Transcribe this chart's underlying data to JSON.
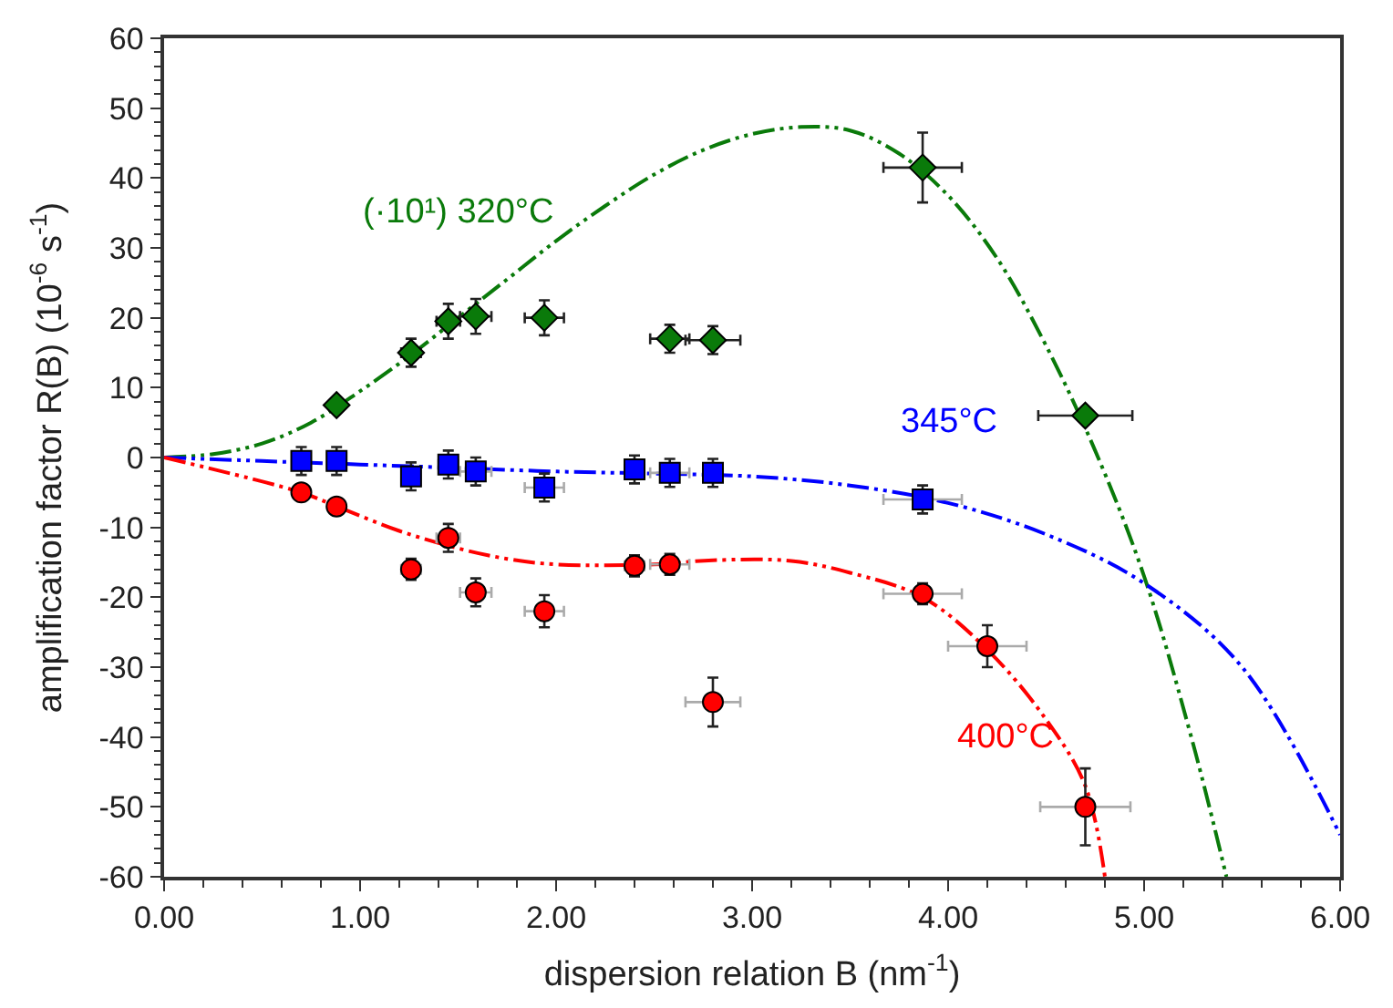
{
  "chart_data": {
    "type": "scatter",
    "xlabel": "dispersion relation B (nm$^{-1}$)",
    "ylabel": "amplification factor R(B) (10$^{-6}$ s$^{-1}$)",
    "xlim": [
      0,
      6
    ],
    "xticks": [
      {
        "value": 0,
        "label": "0.00"
      },
      {
        "value": 1,
        "label": "1.00"
      },
      {
        "value": 2,
        "label": "2.00"
      },
      {
        "value": 3,
        "label": "3.00"
      },
      {
        "value": 4,
        "label": "4.00"
      },
      {
        "value": 5,
        "label": "5.00"
      },
      {
        "value": 6,
        "label": "6.00"
      }
    ],
    "ylim": [
      -60,
      60
    ],
    "yticks": [
      -60,
      -50,
      -40,
      -30,
      -20,
      -10,
      0,
      10,
      20,
      30,
      40,
      50,
      60
    ],
    "legend": false,
    "series": [
      {
        "marker": "diamond",
        "color": "#0a7a0a",
        "x": [
          0.88,
          1.26,
          1.45,
          1.59,
          1.94,
          2.58,
          2.8,
          3.87,
          4.7
        ],
        "values": [
          7.5,
          15,
          19.5,
          20.2,
          20,
          17,
          16.8,
          41.5,
          6
        ],
        "errors": [
          null,
          2,
          2.5,
          2.5,
          2.5,
          2,
          2,
          5,
          null
        ],
        "xerrors": [
          null,
          0.05,
          0.06,
          0.08,
          0.1,
          0.1,
          0.14,
          0.2,
          0.24
        ]
      },
      {
        "marker": "square",
        "color": "#0000ff",
        "x": [
          0.7,
          0.88,
          1.26,
          1.45,
          1.59,
          1.94,
          2.4,
          2.58,
          2.8,
          3.87
        ],
        "values": [
          -0.5,
          -0.5,
          -2.7,
          -1,
          -2,
          -4.3,
          -1.7,
          -2.2,
          -2.2,
          -6
        ],
        "errors": [
          2,
          2,
          2,
          2,
          2,
          2,
          2,
          2,
          2,
          2
        ],
        "xerrors": [
          null,
          null,
          null,
          0.05,
          0.08,
          0.1,
          0.05,
          0.1,
          0.05,
          0.2
        ]
      },
      {
        "marker": "circle",
        "color": "#ff0000",
        "x": [
          0.7,
          0.88,
          1.26,
          1.45,
          1.59,
          1.94,
          2.4,
          2.58,
          2.8,
          3.87,
          4.2,
          4.7
        ],
        "values": [
          -5,
          -7,
          -16,
          -11.5,
          -19.3,
          -22,
          -15.5,
          -15.3,
          -35,
          -19.5,
          -27,
          -50
        ],
        "errors": [
          null,
          null,
          1.5,
          2,
          2,
          2.3,
          1.5,
          1.5,
          3.5,
          1.5,
          3,
          5.5
        ],
        "xerrors": [
          null,
          null,
          0.05,
          0.06,
          0.08,
          0.1,
          0.05,
          0.1,
          0.14,
          0.2,
          0.2,
          0.23
        ]
      },
      {
        "type": "line",
        "name": "(·10¹) 320°C",
        "line_style": "dashed",
        "marker": "none",
        "color": "#0a7a0a",
        "x": [
          0,
          0.25,
          0.5,
          0.75,
          1,
          1.25,
          1.5,
          1.75,
          2,
          2.25,
          2.5,
          2.75,
          3,
          3.25,
          3.5,
          3.75,
          4,
          4.25,
          4.5,
          4.75,
          5,
          5.25,
          5.42
        ],
        "values": [
          0,
          0.5,
          2,
          5,
          9.5,
          14.5,
          20,
          25.5,
          31,
          36,
          40.5,
          44,
          46.3,
          47.3,
          46.8,
          43.5,
          37.5,
          28.5,
          16,
          1,
          -17,
          -41,
          -60
        ]
      },
      {
        "type": "line",
        "name": "345°C",
        "line_style": "dashed",
        "marker": "none",
        "color": "#0000ff",
        "x": [
          0,
          0.5,
          1,
          1.5,
          2,
          2.5,
          3,
          3.5,
          4,
          4.5,
          5,
          5.5,
          6
        ],
        "values": [
          0,
          -0.5,
          -1,
          -1.5,
          -2,
          -2.3,
          -2.7,
          -4,
          -6.5,
          -11,
          -18,
          -30,
          -54
        ]
      },
      {
        "type": "line",
        "name": "400°C",
        "line_style": "dashed",
        "marker": "none",
        "color": "#ff0000",
        "x": [
          0,
          0.7,
          0.88,
          1.2,
          1.5,
          1.75,
          2,
          2.5,
          2.8,
          3.2,
          3.5,
          3.87,
          4.2,
          4.5,
          4.7,
          4.8
        ],
        "values": [
          0,
          -5,
          -7,
          -10.5,
          -13,
          -14.5,
          -15.3,
          -15.3,
          -14.7,
          -14.8,
          -16.5,
          -20,
          -27.5,
          -37.5,
          -47,
          -60
        ]
      }
    ]
  }
}
